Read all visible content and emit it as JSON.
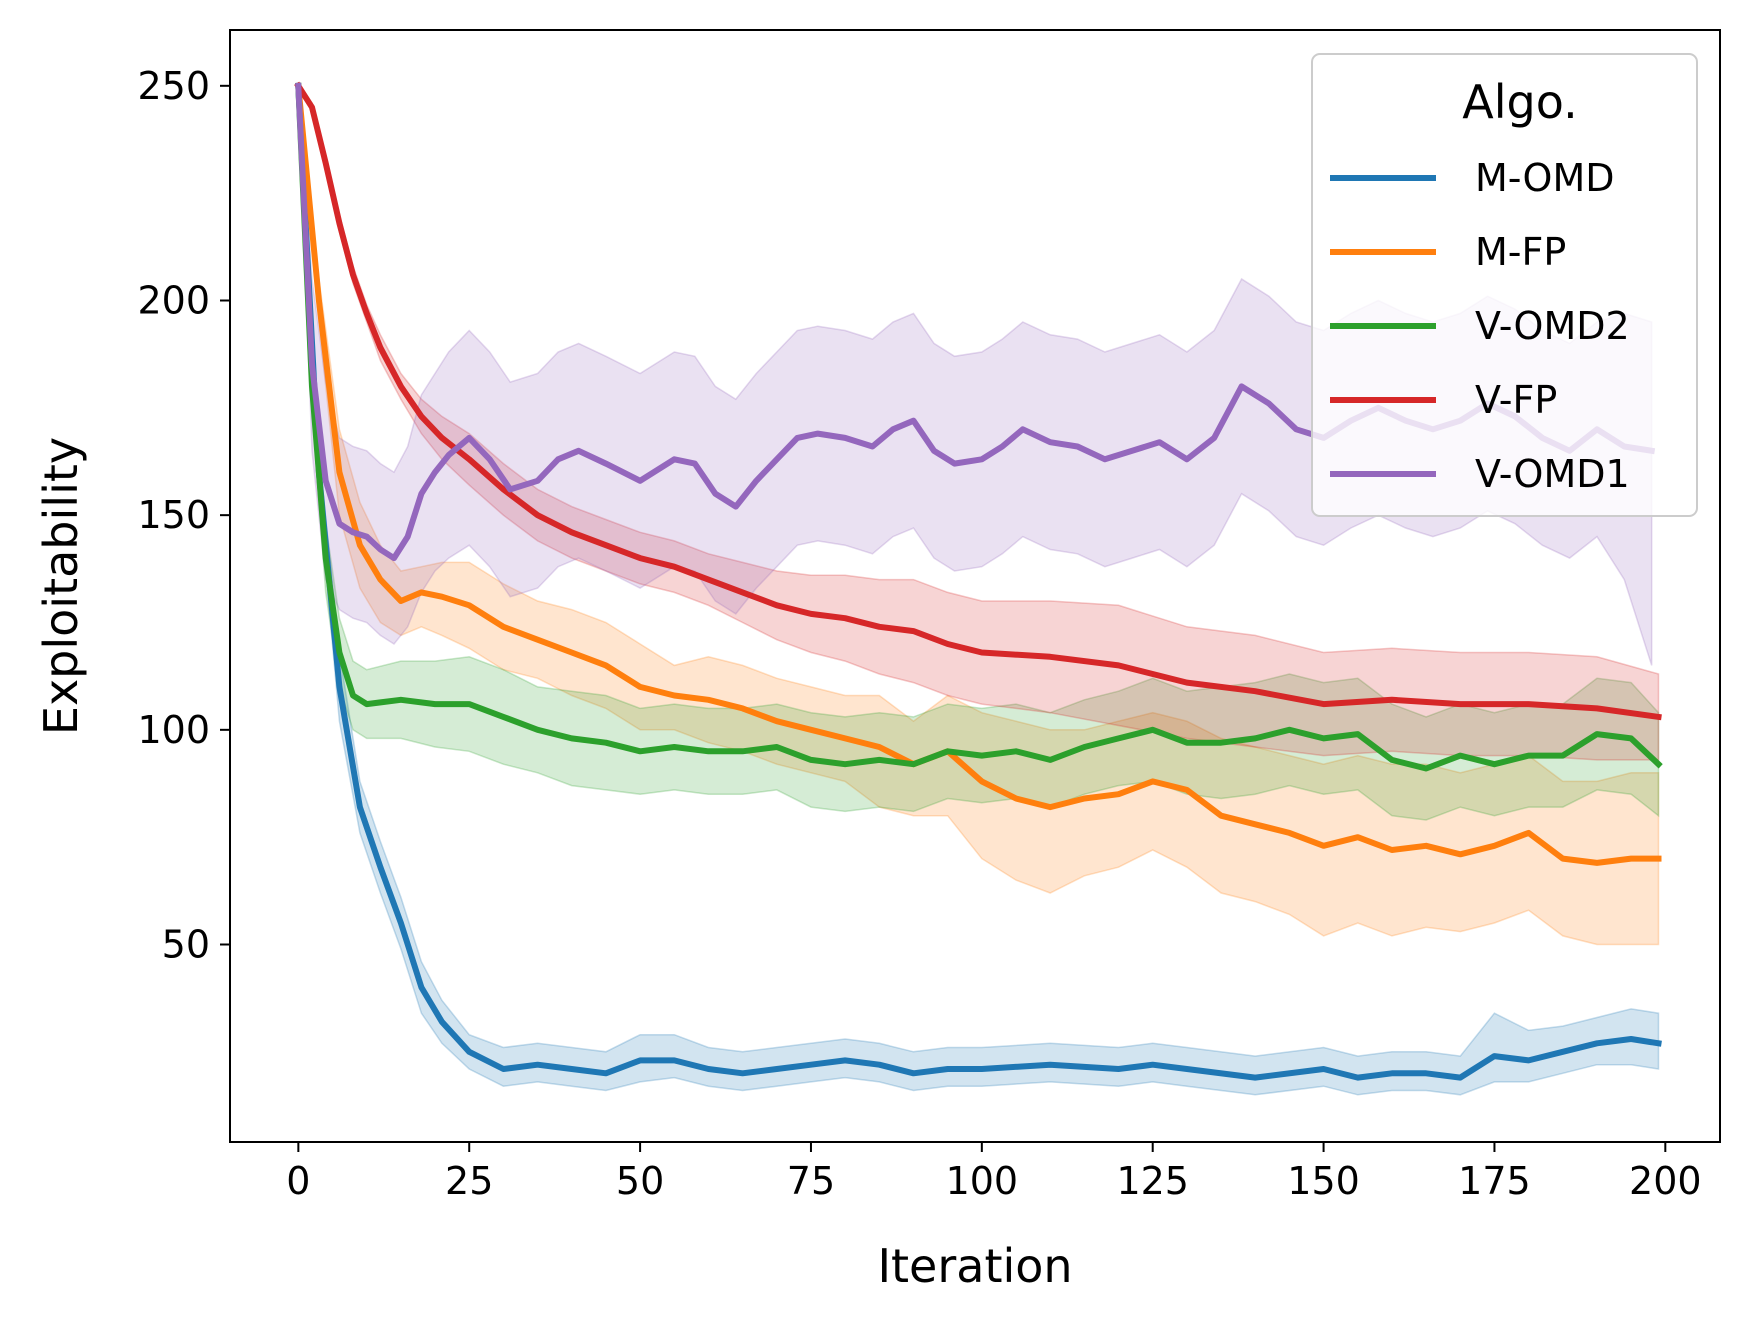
{
  "chart_data": {
    "type": "line",
    "title": "",
    "xlabel": "Iteration",
    "ylabel": "Exploitability",
    "xlim": [
      -10,
      208
    ],
    "ylim": [
      4,
      263
    ],
    "xticks": [
      0,
      25,
      50,
      75,
      100,
      125,
      150,
      175,
      200
    ],
    "yticks": [
      50,
      100,
      150,
      200,
      250
    ],
    "grid": false,
    "legend": {
      "title": "Algo.",
      "position": "top-right"
    },
    "series": [
      {
        "name": "M-OMD",
        "color": "#1f77b4",
        "x": [
          0,
          3,
          6,
          9,
          12,
          15,
          18,
          21,
          25,
          30,
          35,
          40,
          45,
          50,
          55,
          60,
          65,
          70,
          75,
          80,
          85,
          90,
          95,
          100,
          110,
          120,
          125,
          130,
          140,
          150,
          155,
          160,
          165,
          170,
          175,
          180,
          185,
          190,
          195,
          199
        ],
        "values": [
          250,
          160,
          110,
          82,
          68,
          55,
          40,
          32,
          25,
          21,
          22,
          21,
          20,
          23,
          23,
          21,
          20,
          21,
          22,
          23,
          22,
          20,
          21,
          21,
          22,
          21,
          22,
          21,
          19,
          21,
          19,
          20,
          20,
          19,
          24,
          23,
          25,
          27,
          28,
          27
        ],
        "lower": [
          250,
          155,
          102,
          76,
          62,
          49,
          34,
          27,
          21,
          17,
          18,
          17,
          16,
          18,
          19,
          17,
          16,
          17,
          18,
          19,
          18,
          16,
          17,
          17,
          18,
          17,
          18,
          17,
          15,
          17,
          15,
          16,
          16,
          15,
          18,
          18,
          20,
          22,
          22,
          21
        ],
        "upper": [
          250,
          165,
          118,
          88,
          74,
          61,
          46,
          37,
          29,
          26,
          27,
          26,
          25,
          29,
          29,
          26,
          25,
          26,
          27,
          28,
          27,
          25,
          26,
          26,
          27,
          26,
          27,
          26,
          24,
          26,
          24,
          25,
          25,
          24,
          34,
          30,
          31,
          33,
          35,
          34
        ]
      },
      {
        "name": "M-FP",
        "color": "#ff7f0e",
        "x": [
          0,
          3,
          6,
          9,
          12,
          15,
          18,
          21,
          25,
          30,
          35,
          40,
          45,
          50,
          55,
          60,
          65,
          70,
          75,
          80,
          85,
          90,
          95,
          100,
          105,
          110,
          115,
          120,
          125,
          130,
          135,
          140,
          145,
          150,
          155,
          160,
          165,
          170,
          175,
          180,
          185,
          190,
          195,
          199
        ],
        "values": [
          250,
          200,
          160,
          143,
          135,
          130,
          132,
          131,
          129,
          124,
          121,
          118,
          115,
          110,
          108,
          107,
          105,
          102,
          100,
          98,
          96,
          92,
          95,
          88,
          84,
          82,
          84,
          85,
          88,
          86,
          80,
          78,
          76,
          73,
          75,
          72,
          73,
          71,
          73,
          76,
          70,
          69,
          70,
          70
        ],
        "lower": [
          250,
          195,
          150,
          133,
          125,
          122,
          124,
          122,
          119,
          114,
          112,
          108,
          105,
          100,
          100,
          97,
          95,
          92,
          90,
          88,
          82,
          80,
          80,
          70,
          65,
          62,
          66,
          68,
          72,
          68,
          62,
          60,
          57,
          52,
          55,
          52,
          54,
          53,
          55,
          58,
          52,
          50,
          50,
          50
        ],
        "upper": [
          250,
          205,
          170,
          153,
          143,
          137,
          138,
          139,
          139,
          134,
          130,
          128,
          125,
          120,
          115,
          117,
          115,
          112,
          110,
          108,
          108,
          102,
          108,
          104,
          102,
          100,
          100,
          102,
          104,
          102,
          98,
          96,
          94,
          92,
          94,
          92,
          92,
          90,
          92,
          94,
          88,
          88,
          90,
          90
        ]
      },
      {
        "name": "V-OMD2",
        "color": "#2ca02c",
        "x": [
          0,
          2,
          4,
          6,
          8,
          10,
          15,
          20,
          25,
          30,
          35,
          40,
          45,
          50,
          55,
          60,
          65,
          70,
          75,
          80,
          85,
          90,
          95,
          100,
          105,
          110,
          115,
          120,
          125,
          130,
          135,
          140,
          145,
          150,
          155,
          160,
          165,
          170,
          175,
          180,
          185,
          190,
          195,
          199
        ],
        "values": [
          250,
          180,
          140,
          118,
          108,
          106,
          107,
          106,
          106,
          103,
          100,
          98,
          97,
          95,
          96,
          95,
          95,
          96,
          93,
          92,
          93,
          92,
          95,
          94,
          95,
          93,
          96,
          98,
          100,
          97,
          97,
          98,
          100,
          98,
          99,
          93,
          91,
          94,
          92,
          94,
          94,
          99,
          98,
          92
        ],
        "lower": [
          250,
          175,
          132,
          110,
          100,
          98,
          98,
          96,
          95,
          92,
          90,
          87,
          86,
          85,
          86,
          85,
          85,
          86,
          82,
          81,
          82,
          81,
          84,
          83,
          84,
          82,
          85,
          87,
          88,
          85,
          84,
          85,
          87,
          85,
          86,
          80,
          79,
          82,
          80,
          82,
          82,
          86,
          85,
          80
        ],
        "upper": [
          250,
          185,
          148,
          126,
          116,
          114,
          116,
          116,
          117,
          114,
          110,
          109,
          108,
          105,
          106,
          105,
          105,
          106,
          104,
          103,
          104,
          103,
          106,
          105,
          106,
          104,
          107,
          109,
          112,
          109,
          110,
          111,
          113,
          111,
          112,
          106,
          103,
          106,
          104,
          106,
          106,
          112,
          111,
          104
        ]
      },
      {
        "name": "V-FP",
        "color": "#d62728",
        "x": [
          0,
          2,
          4,
          6,
          8,
          10,
          12,
          15,
          18,
          21,
          25,
          30,
          35,
          40,
          45,
          50,
          55,
          60,
          65,
          70,
          75,
          80,
          85,
          90,
          95,
          100,
          110,
          120,
          130,
          140,
          150,
          160,
          170,
          180,
          190,
          199
        ],
        "values": [
          250,
          245,
          232,
          218,
          206,
          197,
          189,
          180,
          173,
          168,
          163,
          156,
          150,
          146,
          143,
          140,
          138,
          135,
          132,
          129,
          127,
          126,
          124,
          123,
          120,
          118,
          117,
          115,
          111,
          109,
          106,
          107,
          106,
          106,
          105,
          103
        ],
        "lower": [
          250,
          244,
          230,
          216,
          204,
          195,
          186,
          177,
          169,
          163,
          157,
          150,
          144,
          140,
          137,
          134,
          132,
          129,
          125,
          121,
          118,
          116,
          113,
          111,
          108,
          106,
          104,
          101,
          98,
          96,
          94,
          95,
          94,
          94,
          93,
          93
        ],
        "upper": [
          250,
          246,
          234,
          220,
          208,
          199,
          192,
          183,
          177,
          173,
          169,
          162,
          156,
          152,
          149,
          146,
          144,
          141,
          139,
          137,
          136,
          136,
          135,
          135,
          132,
          130,
          130,
          129,
          124,
          122,
          118,
          119,
          118,
          118,
          117,
          113
        ]
      },
      {
        "name": "V-OMD1",
        "color": "#9467bd",
        "x": [
          0,
          2,
          4,
          6,
          8,
          10,
          12,
          14,
          16,
          18,
          20,
          22,
          25,
          28,
          31,
          35,
          38,
          41,
          45,
          50,
          55,
          58,
          61,
          64,
          67,
          70,
          73,
          76,
          80,
          84,
          87,
          90,
          93,
          96,
          100,
          103,
          106,
          110,
          114,
          118,
          122,
          126,
          130,
          134,
          138,
          142,
          146,
          150,
          154,
          158,
          162,
          166,
          170,
          174,
          178,
          182,
          186,
          190,
          194,
          198
        ],
        "values": [
          250,
          185,
          158,
          148,
          146,
          145,
          142,
          140,
          145,
          155,
          160,
          164,
          168,
          163,
          156,
          158,
          163,
          165,
          162,
          158,
          163,
          162,
          155,
          152,
          158,
          163,
          168,
          169,
          168,
          166,
          170,
          172,
          165,
          162,
          163,
          166,
          170,
          167,
          166,
          163,
          165,
          167,
          163,
          168,
          180,
          176,
          170,
          168,
          172,
          175,
          172,
          170,
          172,
          176,
          173,
          168,
          165,
          170,
          166,
          165
        ],
        "lower": [
          250,
          165,
          135,
          128,
          126,
          125,
          122,
          120,
          124,
          132,
          137,
          140,
          143,
          138,
          131,
          133,
          138,
          140,
          137,
          133,
          138,
          137,
          130,
          127,
          133,
          138,
          143,
          144,
          143,
          141,
          145,
          147,
          140,
          137,
          138,
          141,
          145,
          142,
          141,
          138,
          140,
          142,
          138,
          143,
          155,
          151,
          145,
          143,
          147,
          150,
          147,
          145,
          147,
          151,
          148,
          143,
          140,
          145,
          135,
          115
        ],
        "upper": [
          250,
          205,
          181,
          168,
          166,
          165,
          162,
          160,
          166,
          178,
          183,
          188,
          193,
          188,
          181,
          183,
          188,
          190,
          187,
          183,
          188,
          187,
          180,
          177,
          183,
          188,
          193,
          194,
          193,
          191,
          195,
          197,
          190,
          187,
          188,
          191,
          195,
          192,
          191,
          188,
          190,
          192,
          188,
          193,
          205,
          201,
          195,
          193,
          197,
          200,
          197,
          195,
          197,
          201,
          198,
          193,
          190,
          195,
          197,
          195
        ]
      }
    ]
  }
}
